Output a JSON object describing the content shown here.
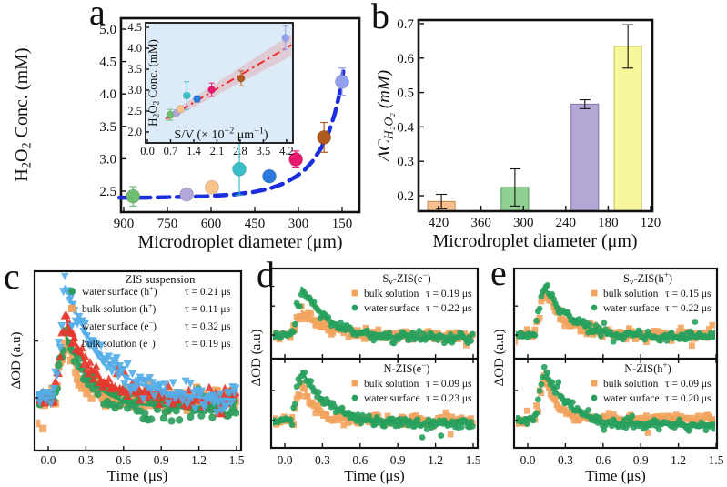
{
  "figure": {
    "background": "#ffffff",
    "text_color": "#111111"
  },
  "panels": {
    "a": "a",
    "b": "b",
    "c": "c",
    "d": "d",
    "e": "e"
  },
  "chart_data": [
    {
      "id": "a",
      "type": "scatter",
      "xlabel": "Microdroplet diameter (μm)",
      "ylabel": "H~2~O~2~ Conc. (mM)",
      "x_ticks": [
        "900",
        "750",
        "600",
        "450",
        "300",
        "150"
      ],
      "x_tick_values": [
        900,
        750,
        600,
        450,
        300,
        150
      ],
      "y_ticks": [
        "2.5",
        "3.0",
        "3.5",
        "4.0",
        "4.5",
        "5.0"
      ],
      "y_tick_values": [
        2.5,
        3.0,
        3.5,
        4.0,
        4.5,
        5.0
      ],
      "x_axis_reversed": true,
      "xlim": [
        920,
        95
      ],
      "ylim": [
        2.2,
        5.17
      ],
      "points": [
        {
          "x": 868,
          "y": 2.42,
          "err": 0.15,
          "color": "#6fbf73"
        },
        {
          "x": 684,
          "y": 2.45,
          "err": 0.05,
          "color": "#b3a6d9"
        },
        {
          "x": 597,
          "y": 2.56,
          "err": 0.07,
          "color": "#f9c38b"
        },
        {
          "x": 503,
          "y": 2.84,
          "err": 0.4,
          "color": "#38bfc9"
        },
        {
          "x": 400,
          "y": 2.73,
          "err": 0.04,
          "color": "#2b7bdc"
        },
        {
          "x": 309,
          "y": 2.99,
          "err": 0.13,
          "color": "#e9186f"
        },
        {
          "x": 212,
          "y": 3.33,
          "err": 0.23,
          "color": "#b05a1e"
        },
        {
          "x": 150,
          "y": 4.19,
          "err": 0.21,
          "color": "#93a0ed"
        }
      ],
      "trend": {
        "color": "#1b2ede",
        "dash": "13 8",
        "width": 4.5,
        "xy": [
          [
            915,
            2.4
          ],
          [
            820,
            2.4
          ],
          [
            720,
            2.41
          ],
          [
            620,
            2.42
          ],
          [
            520,
            2.45
          ],
          [
            450,
            2.49
          ],
          [
            400,
            2.54
          ],
          [
            350,
            2.62
          ],
          [
            310,
            2.72
          ],
          [
            280,
            2.82
          ],
          [
            250,
            2.97
          ],
          [
            220,
            3.18
          ],
          [
            195,
            3.42
          ],
          [
            175,
            3.7
          ],
          [
            160,
            3.98
          ],
          [
            150,
            4.22
          ],
          [
            143,
            4.45
          ]
        ]
      }
    },
    {
      "id": "a_inset",
      "type": "scatter",
      "bg": "#dcebf7",
      "xlabel": "S/V (× 10^−2^ μm^−1^)",
      "ylabel": "H~2~O~2~ Conc. (mM)",
      "x_ticks": [
        "0.0",
        "0.7",
        "1.4",
        "2.1",
        "2.8",
        "3.5",
        "4.2"
      ],
      "x_tick_values": [
        0.0,
        0.7,
        1.4,
        2.1,
        2.8,
        3.5,
        4.2
      ],
      "y_ticks": [
        "2.0",
        "2.5",
        "3.0",
        "3.5",
        "4.0",
        "4.5"
      ],
      "y_tick_values": [
        2.0,
        2.5,
        3.0,
        3.5,
        4.0,
        4.5
      ],
      "fit": {
        "color": "#ee2e2e",
        "x0": 0.55,
        "y0": 2.31,
        "x1": 4.35,
        "y1": 4.08,
        "band_w0": 0.07,
        "band_w1": 0.26,
        "band_color": "rgba(238,90,90,0.22)"
      },
      "points": [
        {
          "x": 0.69,
          "y": 2.41,
          "err": 0.13,
          "color": "#6fbf73"
        },
        {
          "x": 0.88,
          "y": 2.46,
          "err": 0.06,
          "color": "#b3a6d9"
        },
        {
          "x": 1.0,
          "y": 2.55,
          "err": 0.08,
          "color": "#f9c38b"
        },
        {
          "x": 1.19,
          "y": 2.87,
          "err": 0.33,
          "color": "#38bfc9"
        },
        {
          "x": 1.5,
          "y": 2.79,
          "err": 0.07,
          "color": "#2b7bdc"
        },
        {
          "x": 1.94,
          "y": 3.01,
          "err": 0.16,
          "color": "#e9186f"
        },
        {
          "x": 2.83,
          "y": 3.28,
          "err": 0.18,
          "color": "#b05a1e"
        },
        {
          "x": 4.17,
          "y": 4.25,
          "err": 0.28,
          "color": "#93a0ed"
        }
      ]
    },
    {
      "id": "b",
      "type": "bar",
      "xlabel": "Microdroplet diameter (μm)",
      "ylabel": "ΔC~H₂O₂~ (mM)",
      "x_ticks": [
        "420",
        "360",
        "300",
        "240",
        "180",
        "120"
      ],
      "x_tick_values": [
        420,
        360,
        300,
        240,
        180,
        120
      ],
      "y_ticks": [
        "0.2",
        "0.3",
        "0.4",
        "0.5",
        "0.6",
        "0.7"
      ],
      "y_tick_values": [
        0.2,
        0.3,
        0.4,
        0.5,
        0.6,
        0.7
      ],
      "x_axis_reversed": true,
      "xlim": [
        450,
        117
      ],
      "ylim": [
        0.155,
        0.71
      ],
      "bars": [
        {
          "x": 416,
          "value": 0.183,
          "err": 0.021,
          "fill": "#f9c08d",
          "stroke": "#c8945c"
        },
        {
          "x": 312,
          "value": 0.224,
          "err": 0.054,
          "fill": "#90d092",
          "stroke": "#62a867"
        },
        {
          "x": 213,
          "value": 0.466,
          "err": 0.013,
          "fill": "#b5a7d5",
          "stroke": "#897cb0"
        },
        {
          "x": 152,
          "value": 0.634,
          "err": 0.063,
          "fill": "#f7f79c",
          "stroke": "#c9c96a"
        }
      ]
    },
    {
      "id": "c",
      "type": "line",
      "subtype": "TA-decay",
      "title": "ZIS suspension",
      "xlabel": "Time (μs)",
      "ylabel": "ΔOD (a.u)",
      "x_ticks": [
        "0.0",
        "0.3",
        "0.6",
        "0.9",
        "1.2",
        "1.5"
      ],
      "x_tick_values": [
        0.0,
        0.3,
        0.6,
        0.9,
        1.2,
        1.5
      ],
      "xlim": [
        -0.11,
        1.54
      ],
      "series": [
        {
          "name": "water surface (h^+^)",
          "tau_label": "τ = 0.21 μs",
          "tau": 0.21,
          "amp": 0.58,
          "undershoot": 0.13,
          "color": "#2a9d5c",
          "marker": "circle",
          "seed": 11,
          "z": 2
        },
        {
          "name": "bulk solution (h^+^)",
          "tau_label": "τ = 0.11 μs",
          "tau": 0.11,
          "amp": 0.56,
          "undershoot": 0.03,
          "color": "#f2a45e",
          "marker": "square",
          "seed": 22,
          "z": 1
        },
        {
          "name": "water surface (e^−^)",
          "tau_label": "τ = 0.32 μs",
          "tau": 0.32,
          "amp": 1.0,
          "undershoot": 0.05,
          "color": "#53ade8",
          "marker": "tri-down",
          "seed": 33,
          "z": 4
        },
        {
          "name": "bulk solution (e^−^)",
          "tau_label": "τ = 0.19 μs",
          "tau": 0.19,
          "amp": 0.74,
          "undershoot": 0.0,
          "color": "#e6392d",
          "marker": "tri-up",
          "seed": 44,
          "z": 3
        }
      ]
    },
    {
      "id": "d_top",
      "type": "line",
      "subtype": "TA-decay",
      "title": "S~v~-ZIS(e^−^)",
      "xlabel": "Time (μs)",
      "ylabel": "ΔOD (a.u)",
      "x_ticks": [
        "0.0",
        "0.3",
        "0.6",
        "0.9",
        "1.2",
        "1.5"
      ],
      "x_tick_values": [
        0.0,
        0.3,
        0.6,
        0.9,
        1.2,
        1.5
      ],
      "series": [
        {
          "name": "bulk solution",
          "tau_label": "τ = 0.19 μs",
          "tau": 0.19,
          "amp": 0.5,
          "undershoot": 0.02,
          "color": "#f2a45e",
          "marker": "square",
          "seed": 55,
          "z": 1
        },
        {
          "name": "water surface",
          "tau_label": "τ = 0.22 μs",
          "tau": 0.22,
          "amp": 1.0,
          "undershoot": 0.1,
          "color": "#27a05d",
          "marker": "circle",
          "seed": 66,
          "z": 2
        }
      ]
    },
    {
      "id": "d_bottom",
      "type": "line",
      "subtype": "TA-decay",
      "title": "N-ZIS(e^−^)",
      "series": [
        {
          "name": "bulk solution",
          "tau_label": "τ = 0.09 μs",
          "tau": 0.09,
          "amp": 0.8,
          "undershoot": 0.0,
          "color": "#f2a45e",
          "marker": "square",
          "seed": 77,
          "z": 1
        },
        {
          "name": "water surface",
          "tau_label": "τ = 0.23 μs",
          "tau": 0.23,
          "amp": 1.0,
          "undershoot": 0.12,
          "color": "#27a05d",
          "marker": "circle",
          "seed": 88,
          "z": 2
        }
      ]
    },
    {
      "id": "e_top",
      "type": "line",
      "subtype": "TA-decay",
      "title": "S~v~-ZIS(h^+^)",
      "xlabel": "Time (μs)",
      "ylabel": "ΔOD (a.u)",
      "x_ticks": [
        "0.0",
        "0.3",
        "0.6",
        "0.9",
        "1.2",
        "1.5"
      ],
      "x_tick_values": [
        0.0,
        0.3,
        0.6,
        0.9,
        1.2,
        1.5
      ],
      "series": [
        {
          "name": "bulk solution",
          "tau_label": "τ = 0.15 μs",
          "tau": 0.15,
          "amp": 0.9,
          "undershoot": 0.0,
          "color": "#f2a45e",
          "marker": "square",
          "seed": 99,
          "z": 1
        },
        {
          "name": "water surface",
          "tau_label": "τ = 0.22 μs",
          "tau": 0.22,
          "amp": 1.0,
          "undershoot": 0.08,
          "color": "#27a05d",
          "marker": "circle",
          "seed": 110,
          "z": 2
        }
      ]
    },
    {
      "id": "e_bottom",
      "type": "line",
      "subtype": "TA-decay",
      "title": "N-ZIS(h^+^)",
      "series": [
        {
          "name": "bulk solution",
          "tau_label": "τ = 0.09 μs",
          "tau": 0.09,
          "amp": 0.9,
          "undershoot": -0.05,
          "color": "#f2a45e",
          "marker": "square",
          "seed": 121,
          "z": 1
        },
        {
          "name": "water surface",
          "tau_label": "τ = 0.20 μs",
          "tau": 0.2,
          "amp": 1.0,
          "undershoot": 0.14,
          "color": "#27a05d",
          "marker": "circle",
          "seed": 132,
          "z": 2
        }
      ]
    }
  ]
}
